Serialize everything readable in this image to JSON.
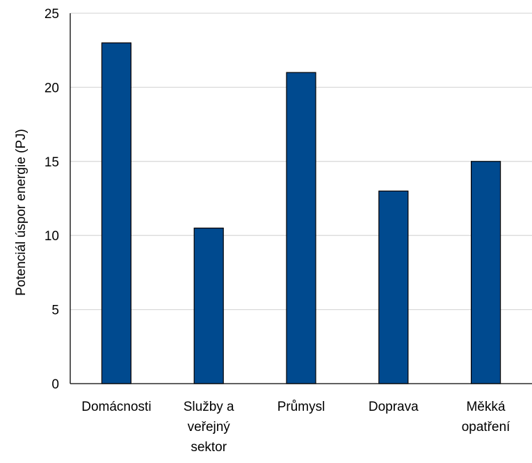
{
  "chart_data": {
    "type": "bar",
    "title": "",
    "xlabel": "",
    "ylabel": "Potenciál úspor energie (PJ)",
    "categories": [
      [
        "Domácnosti"
      ],
      [
        "Služby a",
        "veřejný",
        "sektor"
      ],
      [
        "Průmysl"
      ],
      [
        "Doprava"
      ],
      [
        "Měkká",
        "opatření"
      ]
    ],
    "values": [
      23,
      10.5,
      21,
      13,
      15
    ],
    "ylim": [
      0,
      25
    ],
    "yticks": [
      0,
      5,
      10,
      15,
      20,
      25
    ],
    "ytick_labels": [
      "0",
      "5",
      "10",
      "15",
      "20",
      "25"
    ],
    "grid": true,
    "legend": "none",
    "colors": {
      "bar_fill": "#004a8f",
      "bar_edge": "#000000",
      "grid": "#d9d9d9",
      "axis": "#000000"
    }
  }
}
